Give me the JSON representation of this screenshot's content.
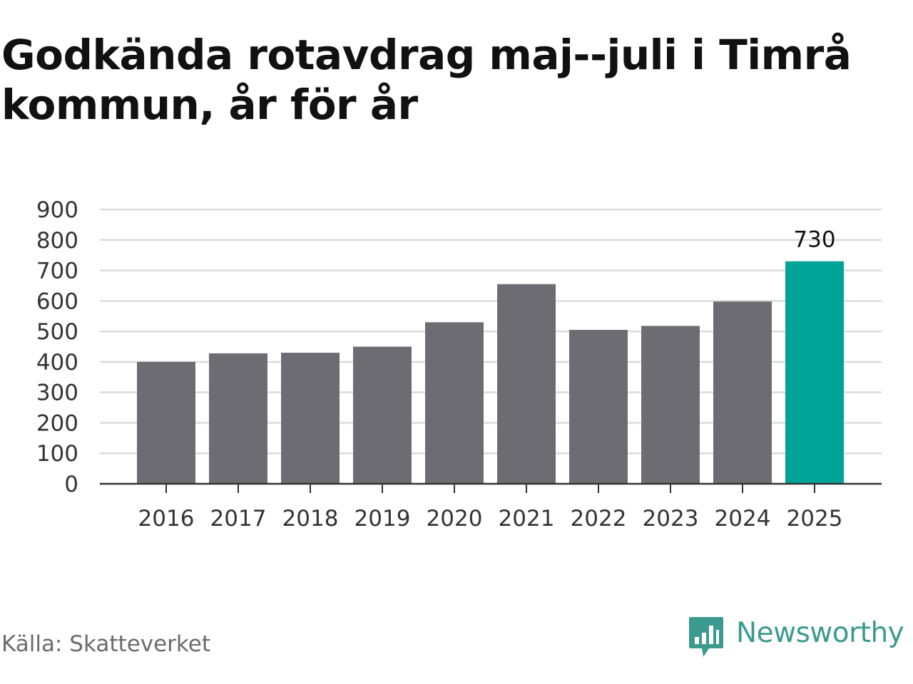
{
  "header": {
    "title": "Godkända rotavdrag maj--juli i Timrå kommun, år för år"
  },
  "footer": {
    "source": "Källa: Skatteverket",
    "brand_name": "Newsworthy",
    "brand_icon": "newsworthy-logo-icon",
    "brand_color": "#3d9a8f"
  },
  "chart_data": {
    "type": "bar",
    "title": "Godkända rotavdrag maj--juli i Timrå kommun, år för år",
    "xlabel": "",
    "ylabel": "",
    "categories": [
      "2016",
      "2017",
      "2018",
      "2019",
      "2020",
      "2021",
      "2022",
      "2023",
      "2024",
      "2025"
    ],
    "values": [
      400,
      428,
      430,
      450,
      530,
      655,
      505,
      518,
      598,
      730
    ],
    "ylim": [
      0,
      900
    ],
    "yticks": [
      0,
      100,
      200,
      300,
      400,
      500,
      600,
      700,
      800,
      900
    ],
    "grid": true,
    "legend": "none",
    "highlight_index": 9,
    "data_labels": [
      {
        "index": 9,
        "text": "730"
      }
    ],
    "colors": {
      "bar": "#6d6c72",
      "highlight": "#00a497",
      "grid": "#dcdcdc",
      "axis": "#333333",
      "tick_text": "#333333"
    }
  }
}
